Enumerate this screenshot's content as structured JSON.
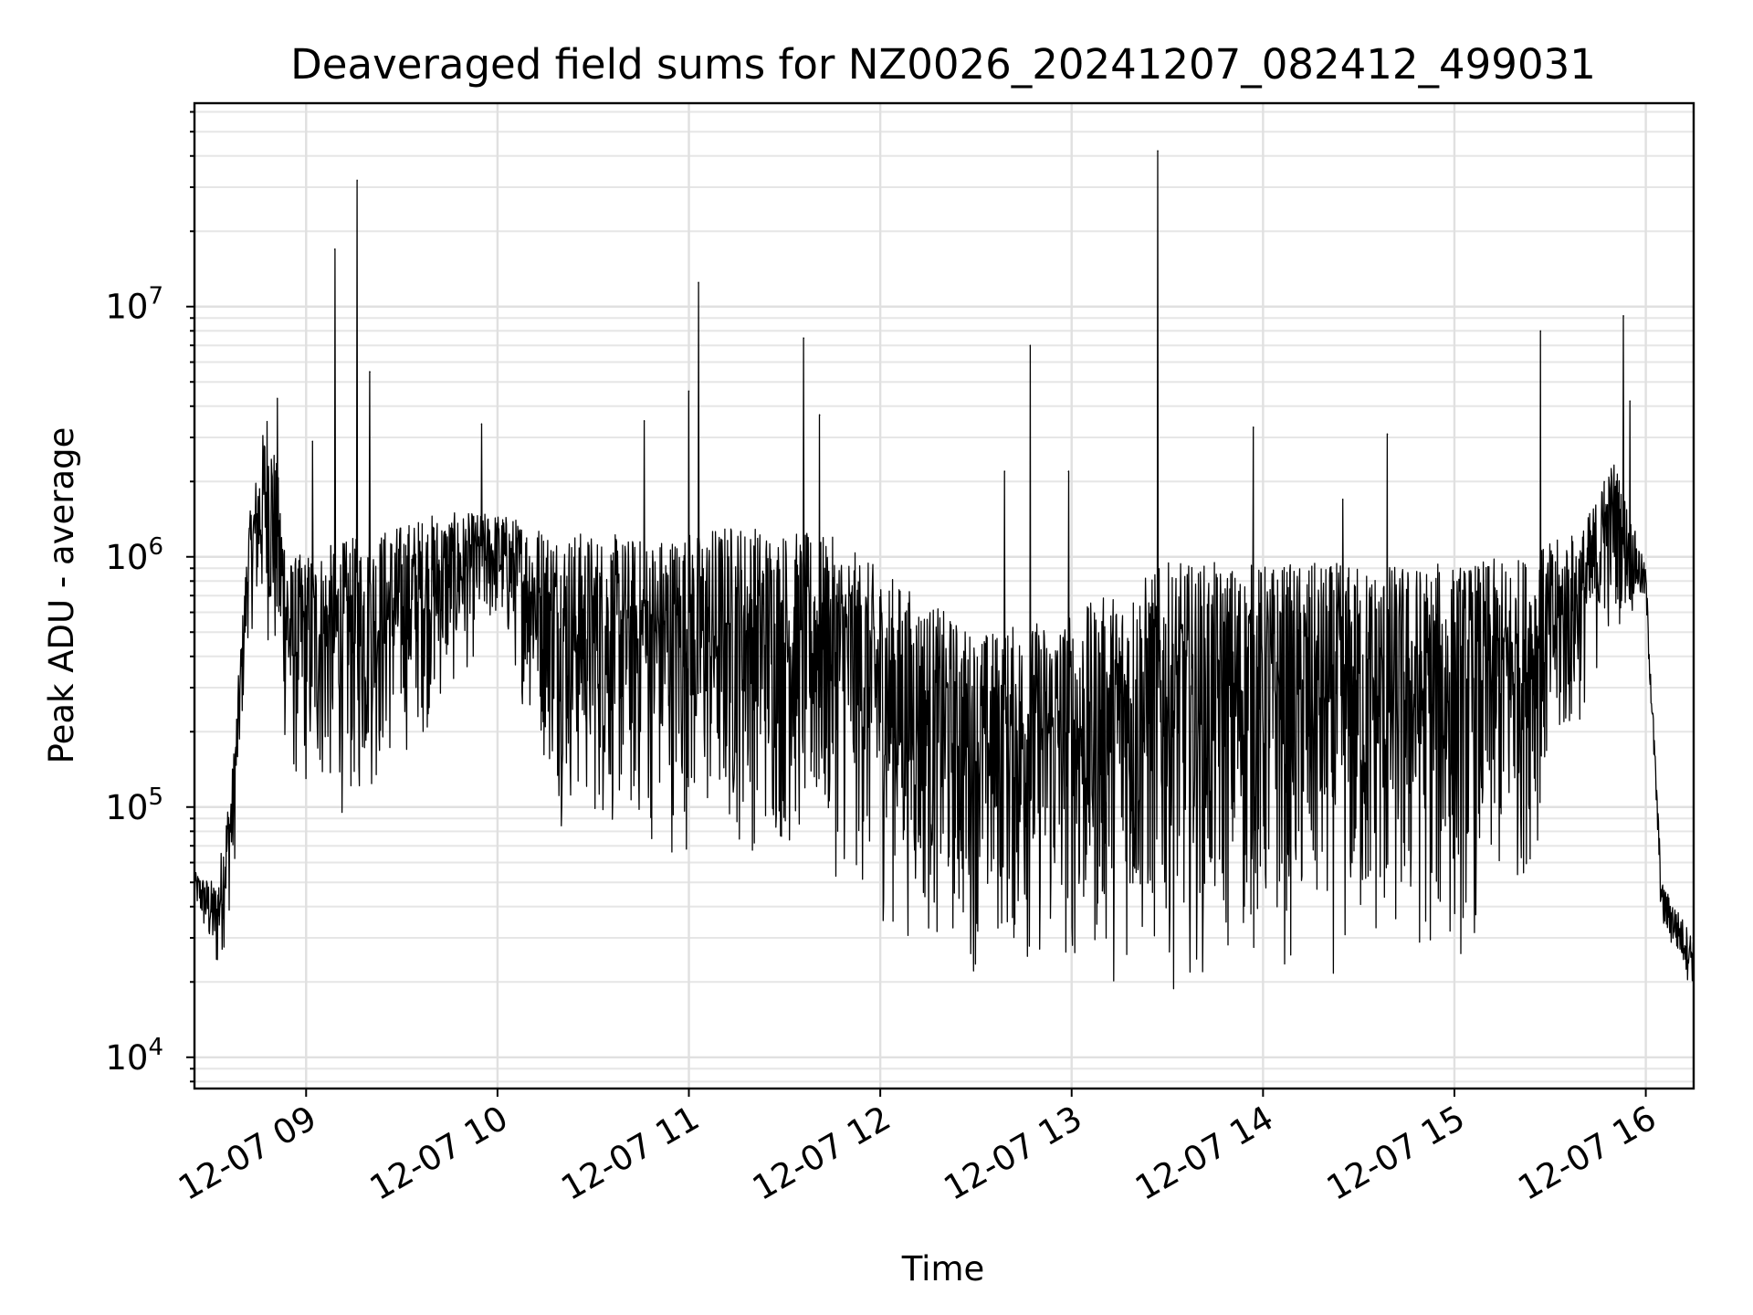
{
  "chart_data": {
    "type": "line",
    "title": "Deaveraged field sums for NZ0026_20241207_082412_499031",
    "xlabel": "Time",
    "ylabel": "Peak ADU - average",
    "yscale": "log",
    "ylim": [
      7500,
      65000000
    ],
    "xlim": [
      "2024-12-07 08:25",
      "2024-12-07 16:15"
    ],
    "x_ticks": [
      "12-07 09",
      "12-07 10",
      "12-07 11",
      "12-07 12",
      "12-07 13",
      "12-07 14",
      "12-07 15",
      "12-07 16"
    ],
    "x_tick_times": [
      "2024-12-07 09:00",
      "2024-12-07 10:00",
      "2024-12-07 11:00",
      "2024-12-07 12:00",
      "2024-12-07 13:00",
      "2024-12-07 14:00",
      "2024-12-07 15:00",
      "2024-12-07 16:00"
    ],
    "y_ticks": [
      {
        "base": "10",
        "exp": "4",
        "value": 10000
      },
      {
        "base": "10",
        "exp": "5",
        "value": 100000
      },
      {
        "base": "10",
        "exp": "6",
        "value": 1000000
      },
      {
        "base": "10",
        "exp": "7",
        "value": 10000000
      }
    ],
    "grid": true,
    "line_color": "#000000",
    "series": [
      {
        "envelope": [
          {
            "t": "2024-12-07 08:25",
            "lo": 40000,
            "hi": 55000
          },
          {
            "t": "2024-12-07 08:32",
            "lo": 18000,
            "hi": 50000
          },
          {
            "t": "2024-12-07 08:37",
            "lo": 40000,
            "hi": 150000
          },
          {
            "t": "2024-12-07 08:42",
            "lo": 500000,
            "hi": 1400000
          },
          {
            "t": "2024-12-07 08:48",
            "lo": 400000,
            "hi": 4200000
          },
          {
            "t": "2024-12-07 08:55",
            "lo": 100000,
            "hi": 1000000
          },
          {
            "t": "2024-12-07 09:15",
            "lo": 80000,
            "hi": 1200000
          },
          {
            "t": "2024-12-07 09:40",
            "lo": 200000,
            "hi": 1500000
          },
          {
            "t": "2024-12-07 10:00",
            "lo": 500000,
            "hi": 1500000
          },
          {
            "t": "2024-12-07 10:20",
            "lo": 80000,
            "hi": 1300000
          },
          {
            "t": "2024-12-07 10:45",
            "lo": 60000,
            "hi": 1200000
          },
          {
            "t": "2024-12-07 11:15",
            "lo": 60000,
            "hi": 1400000
          },
          {
            "t": "2024-12-07 11:45",
            "lo": 50000,
            "hi": 1200000
          },
          {
            "t": "2024-12-07 12:00",
            "lo": 30000,
            "hi": 900000
          },
          {
            "t": "2024-12-07 12:30",
            "lo": 20000,
            "hi": 500000
          },
          {
            "t": "2024-12-07 13:00",
            "lo": 18000,
            "hi": 600000
          },
          {
            "t": "2024-12-07 13:30",
            "lo": 18000,
            "hi": 950000
          },
          {
            "t": "2024-12-07 14:00",
            "lo": 20000,
            "hi": 950000
          },
          {
            "t": "2024-12-07 14:30",
            "lo": 18000,
            "hi": 950000
          },
          {
            "t": "2024-12-07 15:00",
            "lo": 20000,
            "hi": 950000
          },
          {
            "t": "2024-12-07 15:20",
            "lo": 40000,
            "hi": 1000000
          },
          {
            "t": "2024-12-07 15:40",
            "lo": 200000,
            "hi": 1300000
          },
          {
            "t": "2024-12-07 15:50",
            "lo": 500000,
            "hi": 2500000
          },
          {
            "t": "2024-12-07 16:00",
            "lo": 600000,
            "hi": 900000
          },
          {
            "t": "2024-12-07 16:05",
            "lo": 30000,
            "hi": 50000
          },
          {
            "t": "2024-12-07 16:15",
            "lo": 18000,
            "hi": 30000
          }
        ],
        "spikes": [
          {
            "t": "2024-12-07 08:51",
            "value": 4300000
          },
          {
            "t": "2024-12-07 09:02",
            "value": 2900000
          },
          {
            "t": "2024-12-07 09:09",
            "value": 17000000
          },
          {
            "t": "2024-12-07 09:16",
            "value": 32000000
          },
          {
            "t": "2024-12-07 09:20",
            "value": 5500000
          },
          {
            "t": "2024-12-07 09:55",
            "value": 3400000
          },
          {
            "t": "2024-12-07 10:46",
            "value": 3500000
          },
          {
            "t": "2024-12-07 11:00",
            "value": 4600000
          },
          {
            "t": "2024-12-07 11:03",
            "value": 12500000
          },
          {
            "t": "2024-12-07 11:36",
            "value": 7500000
          },
          {
            "t": "2024-12-07 11:41",
            "value": 3700000
          },
          {
            "t": "2024-12-07 12:39",
            "value": 2200000
          },
          {
            "t": "2024-12-07 12:47",
            "value": 7000000
          },
          {
            "t": "2024-12-07 12:59",
            "value": 2200000
          },
          {
            "t": "2024-12-07 13:27",
            "value": 42000000
          },
          {
            "t": "2024-12-07 13:57",
            "value": 3300000
          },
          {
            "t": "2024-12-07 14:25",
            "value": 1700000
          },
          {
            "t": "2024-12-07 14:39",
            "value": 3100000
          },
          {
            "t": "2024-12-07 15:27",
            "value": 8000000
          },
          {
            "t": "2024-12-07 15:47",
            "value": 2000000
          },
          {
            "t": "2024-12-07 15:53",
            "value": 9200000
          },
          {
            "t": "2024-12-07 15:55",
            "value": 4200000
          }
        ]
      }
    ]
  }
}
